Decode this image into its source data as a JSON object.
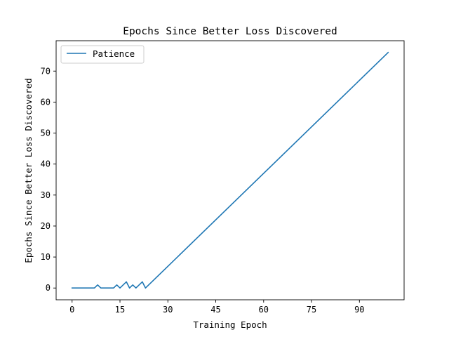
{
  "chart_data": {
    "type": "line",
    "title": "Epochs Since Better Loss Discovered",
    "xlabel": "Training Epoch",
    "ylabel": "Epochs Since Better Loss Discovered",
    "xlim": [
      -5,
      104
    ],
    "ylim": [
      -3.8,
      79.8
    ],
    "x_ticks": [
      0,
      15,
      30,
      45,
      60,
      75,
      90
    ],
    "y_ticks": [
      0,
      10,
      20,
      30,
      40,
      50,
      60,
      70
    ],
    "grid": false,
    "legend_position": "upper-left",
    "series": [
      {
        "name": "Patience",
        "color": "#1f77b4",
        "points": [
          [
            0,
            0
          ],
          [
            1,
            0
          ],
          [
            2,
            0
          ],
          [
            3,
            0
          ],
          [
            4,
            0
          ],
          [
            5,
            0
          ],
          [
            6,
            0
          ],
          [
            7,
            0
          ],
          [
            8,
            1
          ],
          [
            9,
            0
          ],
          [
            10,
            0
          ],
          [
            11,
            0
          ],
          [
            12,
            0
          ],
          [
            13,
            0
          ],
          [
            14,
            1
          ],
          [
            15,
            0
          ],
          [
            16,
            1
          ],
          [
            17,
            2
          ],
          [
            18,
            0
          ],
          [
            19,
            1
          ],
          [
            20,
            0
          ],
          [
            21,
            1
          ],
          [
            22,
            2
          ],
          [
            23,
            0
          ],
          [
            99,
            76
          ]
        ]
      }
    ]
  }
}
